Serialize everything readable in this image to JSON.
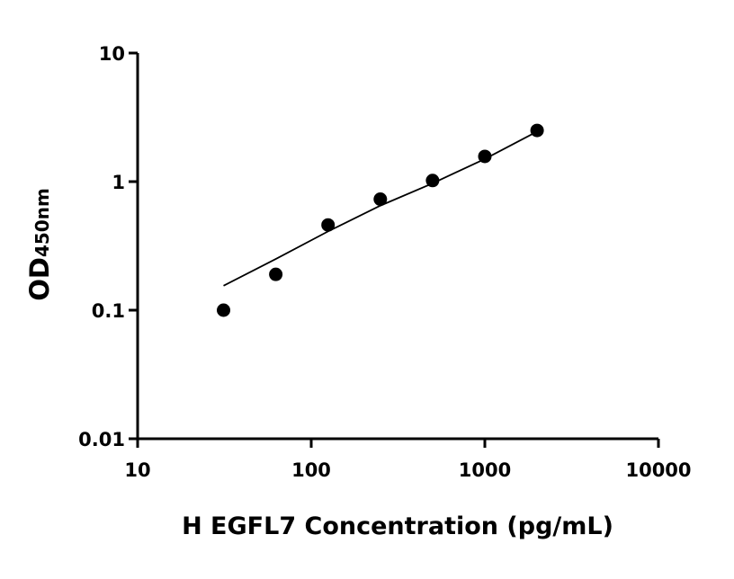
{
  "chart_data": {
    "type": "scatter",
    "x_label": "H EGFL7 Concentration (pg/mL)",
    "y_label": "OD",
    "y_label_sub": "450nm",
    "xscale": "log",
    "yscale": "log",
    "xlim": [
      10,
      10000
    ],
    "xticks": [
      10,
      100,
      1000,
      10000
    ],
    "ylim": [
      0.01,
      10
    ],
    "yticks": [
      0.01,
      0.1,
      1,
      10
    ],
    "series": [
      {
        "type": "scatter",
        "color": "#000000",
        "x": [
          31.25,
          62.5,
          125,
          250,
          500,
          1000,
          2000
        ],
        "values": [
          0.1,
          0.19,
          0.46,
          0.73,
          1.02,
          1.57,
          2.5
        ]
      },
      {
        "type": "line",
        "color": "#000000",
        "x": [
          31.25,
          62.5,
          125,
          250,
          500,
          1000,
          2000
        ],
        "values": [
          0.155,
          0.25,
          0.41,
          0.65,
          0.97,
          1.5,
          2.45
        ]
      }
    ]
  }
}
